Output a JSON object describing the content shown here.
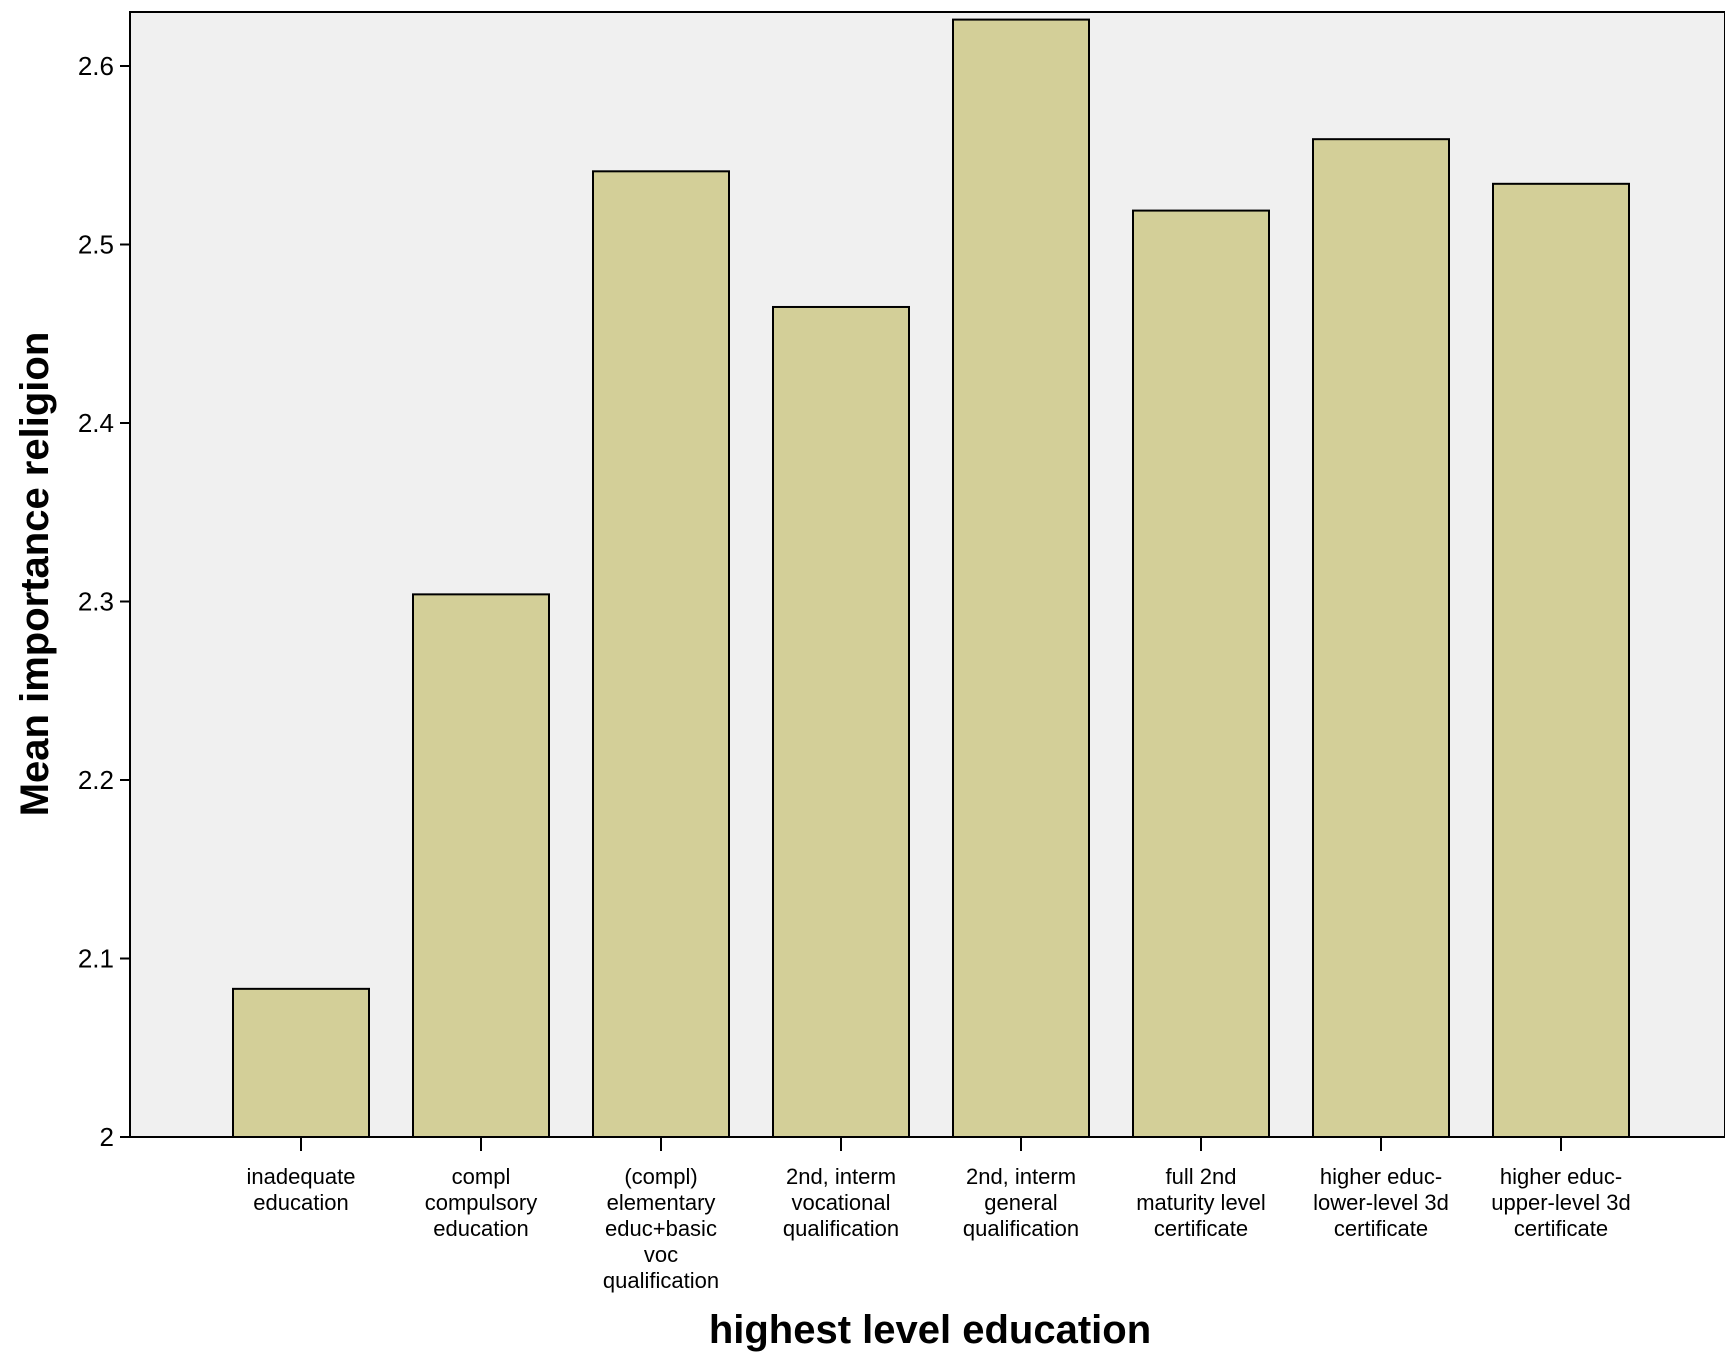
{
  "chart_data": {
    "type": "bar",
    "title": "",
    "xlabel": "highest level education",
    "ylabel": "Mean importance religion",
    "ylim": [
      2.0,
      2.63
    ],
    "yticks": [
      2,
      2.1,
      2.2,
      2.3,
      2.4,
      2.5,
      2.6
    ],
    "ytick_labels": [
      "2",
      "2.1",
      "2.2",
      "2.3",
      "2.4",
      "2.5",
      "2.6"
    ],
    "grid": false,
    "categories": [
      [
        "inadequate",
        "education"
      ],
      [
        "compl",
        "compulsory",
        "education"
      ],
      [
        "(compl)",
        "elementary",
        "educ+basic",
        "voc",
        "qualification"
      ],
      [
        "2nd, interm",
        "vocational",
        "qualification"
      ],
      [
        "2nd, interm",
        "general",
        "qualification"
      ],
      [
        "full 2nd",
        "maturity level",
        "certificate"
      ],
      [
        "higher educ-",
        "lower-level 3d",
        "certificate"
      ],
      [
        "higher educ-",
        "upper-level 3d",
        "certificate"
      ]
    ],
    "values": [
      2.083,
      2.304,
      2.541,
      2.465,
      2.626,
      2.519,
      2.559,
      2.534
    ],
    "colors": {
      "bar_fill": "#d3cf98",
      "bar_stroke": "#000000",
      "plot_background": "#f0f0f0"
    }
  }
}
